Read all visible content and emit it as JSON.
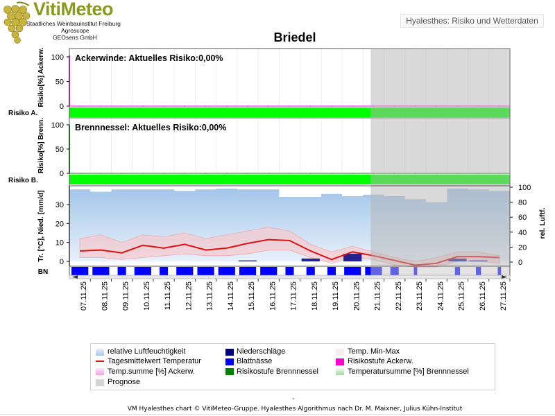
{
  "header": {
    "app_name": "VitiMeteo",
    "institutes": [
      "Staatliches Weinbauinstitut Freiburg",
      "Agroscope",
      "GEOsens GmbH"
    ],
    "module_label": "Hyalesthes: Risiko und Wetterdaten"
  },
  "station": "Briedel",
  "footer": {
    "dash": "-",
    "credit": "VM Hyalesthes chart © VitiMeteo-Gruppe. Hyalesthes Algorithmus nach Dr. M. Maixner, Julius Kühn-Institut"
  },
  "colors": {
    "ackerwinde": "#ff00ff",
    "brennnessel": "#008000",
    "risk_level_low": "#00ff00",
    "temperature": "#e01010",
    "niederschlag": "#000080",
    "blattnaesse": "#0000ff",
    "luftfeuchte": "#a8c8ea",
    "prognose": "#d0d0d0"
  },
  "legend": [
    {
      "label": "relative Luftfeuchtigkeit",
      "icon": "gradient-swatch-blue"
    },
    {
      "label": "Niederschläge",
      "icon": "swatch-navy"
    },
    {
      "label": "Temp. Min-Max",
      "icon": "swatch-light-pink"
    },
    {
      "label": "Tagesmittelwert Temperatur",
      "icon": "line-red"
    },
    {
      "label": "Blattnässe",
      "icon": "swatch-blue"
    },
    {
      "label": "Risikostufe Ackerw.",
      "icon": "swatch-magenta"
    },
    {
      "label": "Temp.summe [%] Ackerw.",
      "icon": "gradient-swatch-pink"
    },
    {
      "label": "Risikostufe Brennnessel",
      "icon": "swatch-green"
    },
    {
      "label": "Temperatursumme [%] Brennnessel",
      "icon": "gradient-swatch-green"
    },
    {
      "label": "Prognose",
      "icon": "swatch-gray"
    }
  ],
  "chart_data": [
    {
      "type": "area",
      "title": "Ackerwinde: Aktuelles Risiko:0,00%",
      "ylabel": "Risiko[%] Ackerw.",
      "yticks": [
        100,
        50,
        0
      ],
      "ylim": [
        0,
        100
      ],
      "risk_row_label": "Risiko A.",
      "values": [
        0,
        0,
        0,
        0,
        0,
        0,
        0,
        0,
        0,
        0,
        0,
        0,
        0,
        0,
        0,
        0,
        0,
        0,
        0,
        0,
        0
      ],
      "risk_level": [
        "low",
        "low",
        "low",
        "low",
        "low",
        "low",
        "low",
        "low",
        "low",
        "low",
        "low",
        "low",
        "low",
        "low",
        "low",
        "low",
        "low",
        "low",
        "low",
        "low",
        "low"
      ]
    },
    {
      "type": "area",
      "title": "Brennnessel: Aktuelles Risiko:0,00%",
      "ylabel": "Risiko[%] Brenn.",
      "yticks": [
        100,
        50,
        0
      ],
      "ylim": [
        0,
        100
      ],
      "risk_row_label": "Risiko B.",
      "values": [
        0,
        0,
        0,
        0,
        0,
        0,
        0,
        0,
        0,
        0,
        0,
        0,
        0,
        0,
        0,
        0,
        0,
        0,
        0,
        0,
        0
      ],
      "risk_level": [
        "low",
        "low",
        "low",
        "low",
        "low",
        "low",
        "low",
        "low",
        "low",
        "low",
        "low",
        "low",
        "low",
        "low",
        "low",
        "low",
        "low",
        "low",
        "low",
        "low",
        "low"
      ]
    },
    {
      "type": "line",
      "ylabel": "Tr. [°C], Nied. [mm/d]",
      "y2label": "rel. Luftf.",
      "yticks": [
        30,
        20,
        10,
        0
      ],
      "y2ticks": [
        100,
        80,
        60,
        40,
        20,
        0
      ],
      "ylim": [
        -3,
        35
      ],
      "y2lim": [
        0,
        100
      ],
      "bn_label": "BN",
      "prognose_from_index": 14,
      "x": [
        "07.11.25",
        "08.11.25",
        "09.11.25",
        "10.11.25",
        "11.11.25",
        "12.11.25",
        "13.11.25",
        "14.11.25",
        "15.11.25",
        "16.11.25",
        "17.11.25",
        "18.11.25",
        "19.11.25",
        "20.11.25",
        "21.11.25",
        "22.11.25",
        "23.11.25",
        "24.11.25",
        "25.11.25",
        "26.11.25",
        "27.11.25"
      ],
      "series": [
        {
          "name": "relative Luftfeuchtigkeit",
          "values": [
            97,
            94,
            97,
            97,
            97,
            95,
            97,
            98,
            97,
            97,
            87,
            87,
            91,
            88,
            90,
            88,
            84,
            80,
            98,
            97,
            95
          ]
        },
        {
          "name": "Tagesmittelwert Temperatur",
          "values": [
            5.5,
            6,
            4.5,
            8.5,
            7,
            9,
            6,
            7,
            9.5,
            11.5,
            11,
            5.5,
            1,
            5,
            3,
            0.5,
            -2,
            -1,
            2.5,
            2.5,
            2
          ]
        },
        {
          "name": "Temp. Min-Max",
          "min": [
            2,
            2,
            1,
            2,
            3,
            4,
            3,
            3,
            4,
            6,
            6,
            2,
            -1,
            2,
            1,
            -2,
            -3,
            -3,
            0,
            0,
            -1
          ],
          "max": [
            12,
            14,
            10,
            14,
            13,
            15,
            12,
            14,
            16,
            18,
            16,
            9,
            5,
            8,
            5,
            2,
            0,
            2,
            5,
            5,
            3
          ]
        },
        {
          "name": "Niederschläge",
          "values": [
            0,
            0,
            0,
            0,
            0,
            0,
            0,
            0,
            0.5,
            0,
            0,
            1.5,
            0,
            4,
            0,
            0,
            0,
            0,
            1.5,
            0.5,
            0
          ]
        },
        {
          "name": "Blattnässe",
          "values": [
            1,
            1,
            0.5,
            1,
            0.5,
            1,
            1,
            1,
            1,
            1,
            0.5,
            0.5,
            0.5,
            1,
            1,
            0.5,
            0.2,
            0,
            0.3,
            0.3,
            0.2
          ]
        }
      ]
    }
  ]
}
